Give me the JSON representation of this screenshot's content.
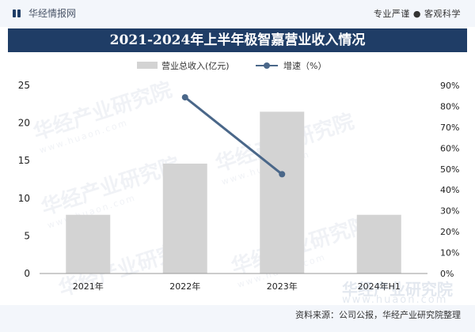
{
  "header": {
    "brand_icon": "bars-logo-icon",
    "brand_name": "华经情报网",
    "tagline": "专业严谨 ● 客观科学"
  },
  "watermark": {
    "text": "华经产业研究院",
    "url": "www.huaon.com"
  },
  "footer": {
    "source": "资料来源：公司公报，华经产业研究院整理"
  },
  "colors": {
    "header_bg": "#1f3d66",
    "bar": "#d3d3d3",
    "line": "#4a6789"
  },
  "chart_data": {
    "type": "bar",
    "title": "2021-2024年上半年极智嘉营业收入情况",
    "categories": [
      "2021年",
      "2022年",
      "2023年",
      "2024年H1"
    ],
    "series": [
      {
        "name": "营业总收入(亿元)",
        "type": "bar",
        "axis": "left",
        "values": [
          7.8,
          14.6,
          21.5,
          7.8
        ]
      },
      {
        "name": "增速（%）",
        "type": "line",
        "axis": "right",
        "values": [
          null,
          84.3,
          47.5,
          null
        ]
      }
    ],
    "y_left": {
      "range": [
        0,
        25
      ],
      "ticks": [
        "0",
        "5",
        "10",
        "15",
        "20",
        "25"
      ]
    },
    "y_right": {
      "range": [
        0,
        90
      ],
      "ticks": [
        "0%",
        "10%",
        "20%",
        "30%",
        "40%",
        "50%",
        "60%",
        "70%",
        "80%",
        "90%"
      ]
    },
    "grid": false,
    "legend_position": "top"
  }
}
